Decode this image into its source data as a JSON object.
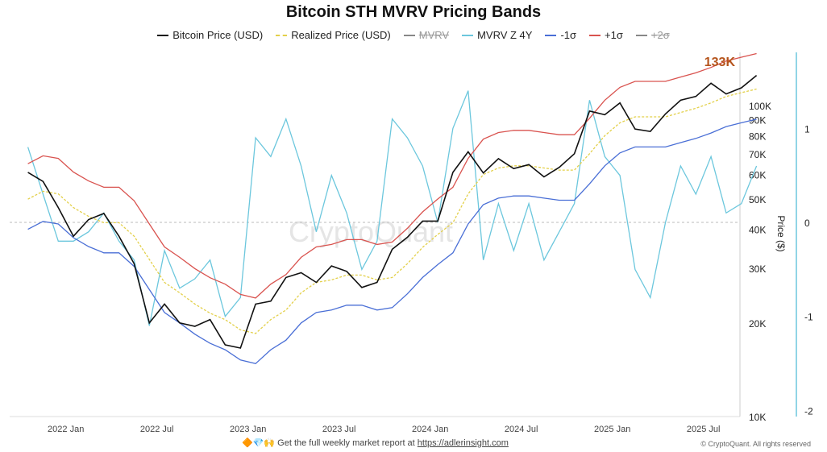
{
  "title": "Bitcoin STH MVRV Pricing Bands",
  "legend": [
    {
      "label": "Bitcoin Price (USD)",
      "color": "#111111",
      "style": "solid",
      "hidden": false
    },
    {
      "label": "Realized Price (USD)",
      "color": "#e3d04a",
      "style": "dashed",
      "hidden": false
    },
    {
      "label": "MVRV",
      "color": "#888888",
      "style": "solid",
      "hidden": true
    },
    {
      "label": "MVRV Z 4Y",
      "color": "#6cc7dd",
      "style": "solid",
      "hidden": false
    },
    {
      "label": "-1σ",
      "color": "#4a6fd6",
      "style": "solid",
      "hidden": false
    },
    {
      "label": "+1σ",
      "color": "#d9534f",
      "style": "solid",
      "hidden": false
    },
    {
      "label": "+2σ",
      "color": "#888888",
      "style": "solid",
      "hidden": true
    }
  ],
  "watermark": "CryptoQuant",
  "last_value_label": "133K",
  "last_value_color": "#b5541c",
  "footer": {
    "emojis": "🔶💎🙌",
    "text": "Get the full weekly market report at",
    "link": "https://adlerinsight.com",
    "copyright": "© CryptoQuant. All rights reserved"
  },
  "chart_data": {
    "type": "line",
    "title": "Bitcoin STH MVRV Pricing Bands",
    "x_ticks": [
      "2022 Jan",
      "2022 Jul",
      "2023 Jan",
      "2023 Jul",
      "2024 Jan",
      "2024 Jul",
      "2025 Jan",
      "2025 Jul"
    ],
    "x_tick_dates": [
      "2022-01",
      "2022-07",
      "2023-01",
      "2023-07",
      "2024-01",
      "2024-07",
      "2025-01",
      "2025-07"
    ],
    "x": [
      "2021-10",
      "2021-11",
      "2021-12",
      "2022-01",
      "2022-02",
      "2022-03",
      "2022-04",
      "2022-05",
      "2022-06",
      "2022-07",
      "2022-08",
      "2022-09",
      "2022-10",
      "2022-11",
      "2022-12",
      "2023-01",
      "2023-02",
      "2023-03",
      "2023-04",
      "2023-05",
      "2023-06",
      "2023-07",
      "2023-08",
      "2023-09",
      "2023-10",
      "2023-11",
      "2023-12",
      "2024-01",
      "2024-02",
      "2024-03",
      "2024-04",
      "2024-05",
      "2024-06",
      "2024-07",
      "2024-08",
      "2024-09",
      "2024-10",
      "2024-11",
      "2024-12",
      "2025-01",
      "2025-02",
      "2025-03",
      "2025-04",
      "2025-05",
      "2025-06",
      "2025-07",
      "2025-08",
      "2025-09",
      "2025-10"
    ],
    "y_left": {
      "label": "Price ($)",
      "scale": "log",
      "range": [
        10000,
        150000
      ],
      "ticks": [
        10000,
        20000,
        30000,
        40000,
        50000,
        60000,
        70000,
        80000,
        90000,
        100000
      ],
      "tick_labels": [
        "10K",
        "20K",
        "30K",
        "40K",
        "50K",
        "60K",
        "70K",
        "80K",
        "90K",
        "100K"
      ]
    },
    "y_right": {
      "range": [
        -2.1,
        1.8
      ],
      "ticks": [
        1,
        0,
        -1,
        -2
      ],
      "tick_labels": [
        "1",
        "0",
        "-1",
        "-2"
      ]
    },
    "series": [
      {
        "name": "Bitcoin Price (USD)",
        "axis": "left",
        "color": "#111111",
        "values": [
          61000,
          57000,
          47000,
          38000,
          43000,
          45000,
          38000,
          31000,
          20000,
          23000,
          20000,
          19500,
          20500,
          17000,
          16600,
          23000,
          23500,
          28000,
          29000,
          27000,
          30500,
          29300,
          26000,
          27000,
          34500,
          37700,
          42500,
          42500,
          61000,
          71000,
          60700,
          67500,
          62700,
          64600,
          59000,
          63300,
          70000,
          96000,
          93400,
          102000,
          84000,
          82500,
          94000,
          104000,
          107000,
          118000,
          109000,
          114000,
          125000
        ]
      },
      {
        "name": "Realized Price (USD)",
        "axis": "left",
        "color": "#e3d04a",
        "dashed": true,
        "values": [
          50000,
          53000,
          52000,
          47000,
          44000,
          42000,
          42000,
          38000,
          32000,
          27000,
          25000,
          23000,
          21500,
          20500,
          19000,
          18500,
          20500,
          22000,
          25000,
          27000,
          27500,
          28500,
          28500,
          27500,
          28000,
          31000,
          35000,
          38500,
          42000,
          52000,
          60000,
          63000,
          64000,
          64000,
          63000,
          62000,
          62000,
          70000,
          80000,
          88000,
          92000,
          92000,
          92000,
          95000,
          98000,
          102000,
          107000,
          110000,
          113000
        ]
      },
      {
        "name": "-1σ",
        "axis": "left",
        "color": "#4a6fd6",
        "values": [
          40000,
          42400,
          41600,
          37600,
          35200,
          33600,
          33600,
          30400,
          25600,
          21600,
          20000,
          18400,
          17200,
          16400,
          15200,
          14800,
          16400,
          17600,
          20000,
          21600,
          22000,
          22800,
          22800,
          22000,
          22400,
          24800,
          28000,
          30800,
          33600,
          41600,
          48000,
          50400,
          51200,
          51200,
          50400,
          49600,
          49600,
          56000,
          64000,
          70400,
          73600,
          73600,
          73600,
          76000,
          78400,
          81600,
          85600,
          88000,
          90400
        ]
      },
      {
        "name": "+1σ",
        "axis": "left",
        "color": "#d9534f",
        "values": [
          65000,
          68900,
          67600,
          61100,
          57200,
          54600,
          54600,
          49400,
          41600,
          35100,
          32500,
          29900,
          27950,
          26650,
          24700,
          24050,
          26650,
          28600,
          32500,
          35100,
          35750,
          37050,
          37050,
          35750,
          36400,
          40300,
          45500,
          50050,
          54600,
          67600,
          78000,
          81900,
          83200,
          83200,
          81900,
          80600,
          80600,
          91000,
          104000,
          114400,
          119600,
          119600,
          119600,
          123500,
          127400,
          132600,
          139100,
          143000,
          146900
        ]
      },
      {
        "name": "MVRV Z 4Y",
        "axis": "right",
        "color": "#6cc7dd",
        "values": [
          0.8,
          0.3,
          -0.2,
          -0.2,
          -0.1,
          0.1,
          -0.2,
          -0.4,
          -1.1,
          -0.3,
          -0.7,
          -0.6,
          -0.4,
          -1.0,
          -0.8,
          0.9,
          0.7,
          1.1,
          0.6,
          -0.1,
          0.5,
          0.1,
          -0.5,
          -0.2,
          1.1,
          0.9,
          0.6,
          0.0,
          1.0,
          1.4,
          -0.4,
          0.2,
          -0.3,
          0.2,
          -0.4,
          -0.1,
          0.2,
          1.3,
          0.7,
          0.5,
          -0.5,
          -0.8,
          0.0,
          0.6,
          0.3,
          0.7,
          0.1,
          0.2,
          0.6
        ]
      }
    ],
    "grid": false,
    "legend_position": "top"
  }
}
